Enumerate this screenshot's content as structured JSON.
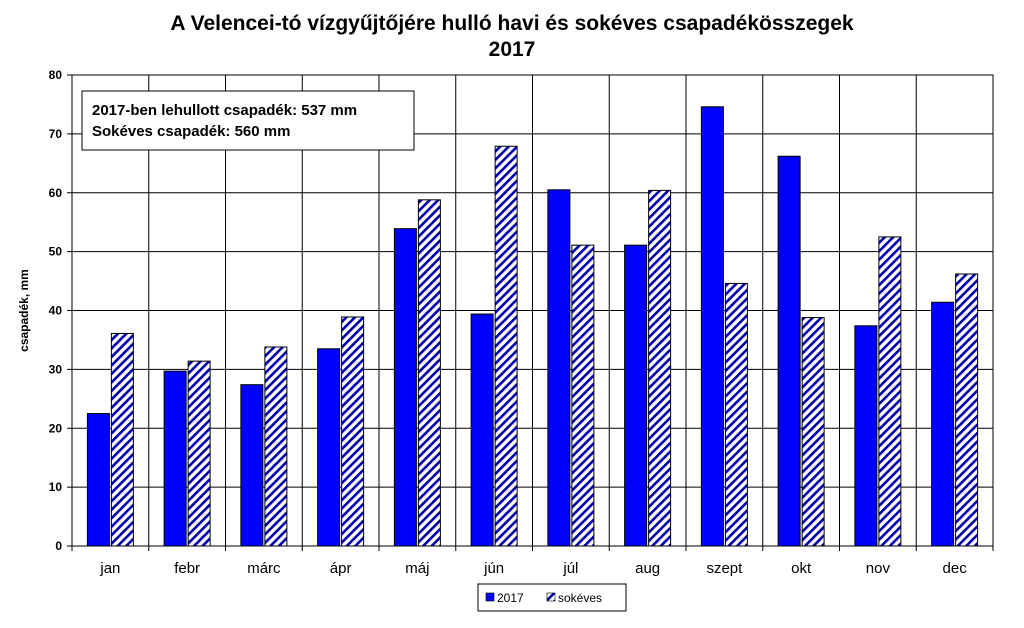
{
  "chart_data": {
    "type": "bar",
    "title": "A Velencei-tó vízgyűjtőjére hulló havi és sokéves csapadékösszegek",
    "subtitle": "2017",
    "xlabel": "",
    "ylabel": "csapadék,  mm",
    "ylim": [
      0,
      80
    ],
    "yticks": [
      "0",
      "10",
      "20",
      "30",
      "40",
      "50",
      "60",
      "70",
      "80"
    ],
    "grid": true,
    "legend_position": "bottom",
    "categories": [
      "jan",
      "febr",
      "márc",
      "ápr",
      "máj",
      "jún",
      "júl",
      "aug",
      "szept",
      "okt",
      "nov",
      "dec"
    ],
    "series": [
      {
        "name": "2017",
        "color": "#0000ff",
        "pattern": "solid",
        "values": [
          22.5,
          29.7,
          27.4,
          33.5,
          53.9,
          39.4,
          60.5,
          51.1,
          74.6,
          66.2,
          37.4,
          41.4
        ]
      },
      {
        "name": "sokéves",
        "color": "#0000aa",
        "pattern": "diagonal-hatch",
        "values": [
          36.1,
          31.4,
          33.8,
          38.9,
          58.8,
          67.9,
          51.1,
          60.4,
          44.6,
          38.8,
          52.5,
          46.2
        ]
      }
    ],
    "annotation": {
      "line1": "2017-ben lehullott csapadék: 537 mm",
      "line2": "Sokéves csapadék: 560 mm"
    }
  }
}
